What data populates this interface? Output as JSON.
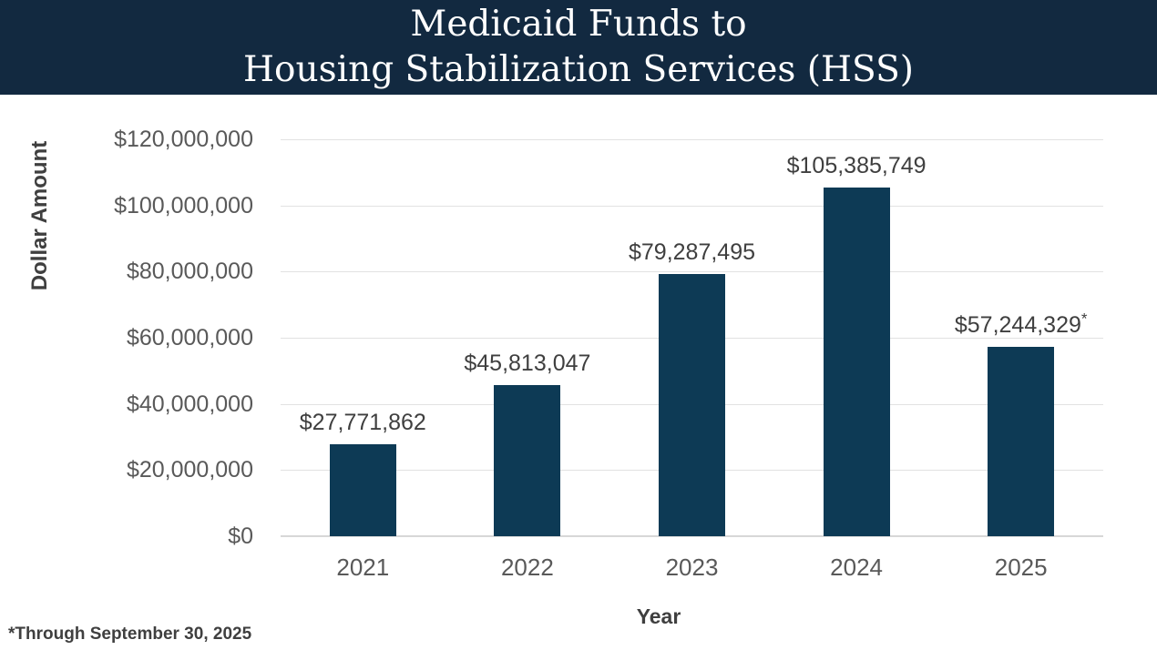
{
  "header": {
    "title_line1": "Medicaid Funds to",
    "title_line2": "Housing Stabilization Services (HSS)",
    "background": "#122940",
    "text_color": "#ffffff"
  },
  "chart_data": {
    "type": "bar",
    "title": "Medicaid Funds to Housing Stabilization Services (HSS)",
    "xlabel": "Year",
    "ylabel": "Dollar Amount",
    "categories": [
      "2021",
      "2022",
      "2023",
      "2024",
      "2025"
    ],
    "values": [
      27771862,
      45813047,
      79287495,
      105385749,
      57244329
    ],
    "bar_labels": [
      "$27,771,862",
      "$45,813,047",
      "$79,287,495",
      "$105,385,749",
      "$57,244,329"
    ],
    "bar_label_suffixes": [
      "",
      "",
      "",
      "",
      "*"
    ],
    "ylim": [
      0,
      120000000
    ],
    "ytick_step": 20000000,
    "ytick_labels": [
      "$0",
      "$20,000,000",
      "$40,000,000",
      "$60,000,000",
      "$80,000,000",
      "$100,000,000",
      "$120,000,000"
    ],
    "grid": true,
    "legend": "none",
    "bar_color": "#0d3a55",
    "gridline_color": "#e2e2e2"
  },
  "footnote": "*Through September 30, 2025"
}
